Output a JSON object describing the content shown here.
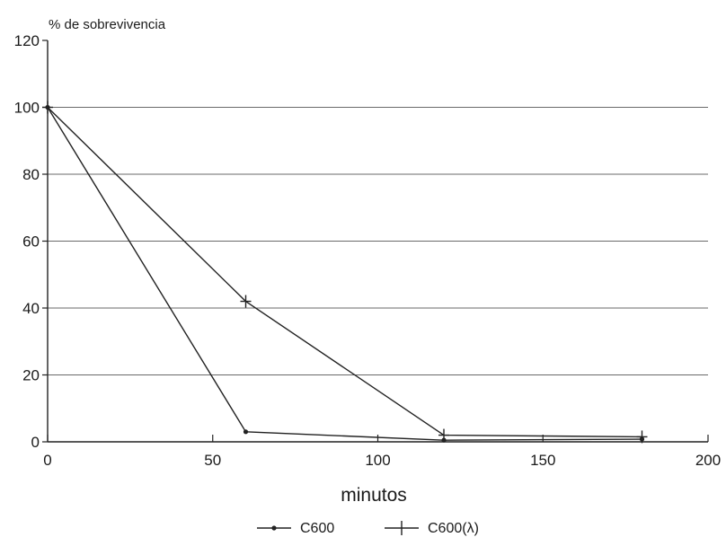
{
  "chart_data": {
    "type": "line",
    "title": "",
    "ylabel": "% de sobrevivencia",
    "xlabel": "minutos",
    "xlim": [
      0,
      200
    ],
    "ylim": [
      0,
      120
    ],
    "xticks": [
      0,
      50,
      100,
      150,
      200
    ],
    "yticks": [
      0,
      20,
      40,
      60,
      80,
      100,
      120
    ],
    "x_tick_labels": [
      "0",
      "50",
      "100",
      "150",
      "200"
    ],
    "y_tick_labels": [
      "0",
      "20",
      "40",
      "60",
      "80",
      "100",
      "120"
    ],
    "grid": "horizontal",
    "legend_position": "bottom",
    "series": [
      {
        "name": "C600",
        "marker": "dot",
        "color": "#222222",
        "x": [
          0,
          60,
          120,
          180
        ],
        "y": [
          100,
          3,
          0.5,
          0.8
        ]
      },
      {
        "name": "C600(λ)",
        "marker": "plus",
        "color": "#222222",
        "x": [
          0,
          60,
          120,
          180
        ],
        "y": [
          100,
          42,
          2,
          1.5
        ]
      }
    ]
  }
}
